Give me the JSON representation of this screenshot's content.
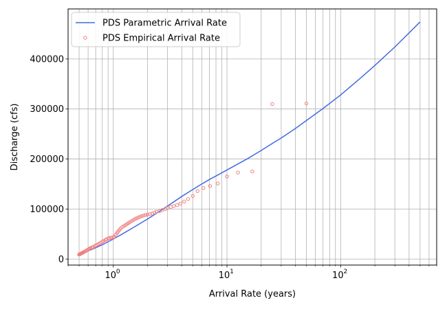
{
  "chart_data": {
    "type": "scatter",
    "title": "",
    "xlabel": "Arrival Rate (years)",
    "ylabel": "Discharge (cfs)",
    "xscale": "log",
    "xlim": [
      0.4,
      700
    ],
    "ylim": [
      -12000,
      500000
    ],
    "grid": true,
    "legend_position": "top-left",
    "x_major_ticks": [
      {
        "value": 1,
        "label": "10",
        "exp": "0"
      },
      {
        "value": 10,
        "label": "10",
        "exp": "1"
      },
      {
        "value": 100,
        "label": "10",
        "exp": "2"
      }
    ],
    "x_minor_ticks": [
      0.4,
      0.5,
      0.6,
      0.7,
      0.8,
      0.9,
      2,
      3,
      4,
      5,
      6,
      7,
      8,
      9,
      20,
      30,
      40,
      50,
      60,
      70,
      80,
      90,
      200,
      300,
      400,
      500,
      600,
      700
    ],
    "y_ticks": [
      {
        "value": 0,
        "label": "0"
      },
      {
        "value": 100000,
        "label": "100000"
      },
      {
        "value": 200000,
        "label": "200000"
      },
      {
        "value": 300000,
        "label": "300000"
      },
      {
        "value": 400000,
        "label": "400000"
      }
    ],
    "series": [
      {
        "name": "PDS Parametric Arrival Rate",
        "kind": "line",
        "color": "#4169e1",
        "x": [
          0.5,
          0.6,
          0.7,
          0.8,
          0.9,
          1.0,
          1.2,
          1.5,
          2,
          2.5,
          3,
          4,
          5,
          6,
          7,
          8,
          10,
          12,
          15,
          20,
          25,
          30,
          40,
          50,
          70,
          100,
          150,
          200,
          300,
          400,
          500
        ],
        "y": [
          9000,
          16000,
          22500,
          28500,
          34500,
          40000,
          50000,
          63000,
          80000,
          94000,
          106000,
          125000,
          139000,
          150000,
          159000,
          166000,
          178000,
          188000,
          200000,
          217000,
          231000,
          242000,
          261000,
          277000,
          301000,
          328000,
          362000,
          387000,
          424000,
          452000,
          474000
        ]
      },
      {
        "name": "PDS Empirical Arrival Rate",
        "kind": "scatter",
        "color": "#f08080",
        "x": [
          0.5,
          0.505,
          0.51,
          0.515,
          0.52,
          0.525,
          0.53,
          0.535,
          0.54,
          0.55,
          0.56,
          0.57,
          0.58,
          0.59,
          0.6,
          0.61,
          0.62,
          0.63,
          0.65,
          0.66,
          0.68,
          0.7,
          0.72,
          0.74,
          0.76,
          0.78,
          0.8,
          0.82,
          0.85,
          0.87,
          0.9,
          0.92,
          0.95,
          0.97,
          1.0,
          1.02,
          1.05,
          1.08,
          1.1,
          1.13,
          1.16,
          1.2,
          1.24,
          1.28,
          1.32,
          1.36,
          1.4,
          1.45,
          1.5,
          1.55,
          1.6,
          1.66,
          1.72,
          1.78,
          1.85,
          1.92,
          2.0,
          2.1,
          2.2,
          2.3,
          2.4,
          2.55,
          2.7,
          2.85,
          3.0,
          3.2,
          3.4,
          3.65,
          3.9,
          4.2,
          4.55,
          5.0,
          5.5,
          6.2,
          7.1,
          8.3,
          10.0,
          12.5,
          16.7,
          25.0,
          50.0
        ],
        "y": [
          9000,
          9500,
          10000,
          10500,
          11000,
          11500,
          12000,
          12500,
          13000,
          14000,
          15000,
          16000,
          17000,
          18000,
          19000,
          20000,
          21000,
          22000,
          23000,
          24000,
          25500,
          27000,
          28500,
          30000,
          31500,
          33000,
          34500,
          36000,
          38000,
          39500,
          41000,
          42000,
          42500,
          43000,
          43500,
          45000,
          49000,
          52000,
          55000,
          58000,
          61000,
          64000,
          66000,
          68000,
          70000,
          72000,
          74000,
          76000,
          78000,
          80000,
          81500,
          83000,
          84500,
          86000,
          87000,
          88000,
          89000,
          90000,
          91000,
          93000,
          94500,
          96000,
          98000,
          100000,
          102000,
          104000,
          106000,
          108000,
          111000,
          115000,
          120000,
          126000,
          136000,
          142000,
          146000,
          151000,
          165000,
          173000,
          175000,
          310000,
          311000
        ]
      }
    ]
  }
}
